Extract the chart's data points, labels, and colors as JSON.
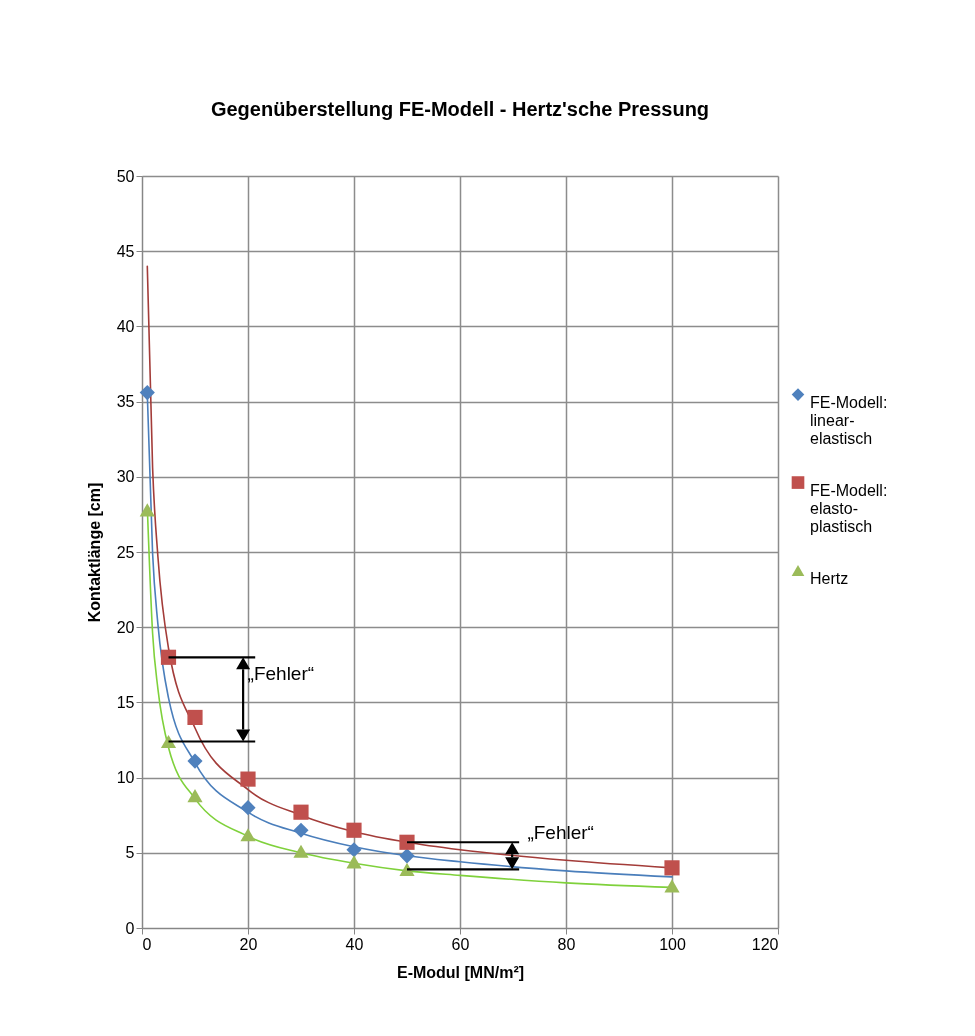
{
  "chart_data": {
    "type": "scatter",
    "title": "Gegenüberstellung FE-Modell - Hertz'sche Pressung",
    "xlabel": "E-Modul [MN/m²]",
    "ylabel": "Kontaktlänge [cm]",
    "xlim": [
      0,
      120
    ],
    "xticks": [
      0,
      20,
      40,
      60,
      80,
      100,
      120
    ],
    "ylim": [
      0,
      50
    ],
    "yticks": [
      0,
      5,
      10,
      15,
      20,
      25,
      30,
      35,
      40,
      45,
      50
    ],
    "grid": true,
    "legend": "right",
    "series": [
      {
        "name": "FE-Modell: linear-elastisch",
        "color": "#4f81bd",
        "marker": "diamond",
        "x": [
          1,
          10,
          20,
          30,
          40,
          50
        ],
        "values": [
          35.6,
          11.1,
          8.0,
          6.5,
          5.2,
          4.8
        ]
      },
      {
        "name": "FE-Modell: elasto-plastisch",
        "color": "#c0504d",
        "marker": "square",
        "x": [
          5,
          10,
          20,
          30,
          40,
          50,
          100
        ],
        "values": [
          18.0,
          14.0,
          9.9,
          7.7,
          6.5,
          5.7,
          4.0
        ]
      },
      {
        "name": "Hertz",
        "color": "#9bbb59",
        "marker": "triangle",
        "x": [
          1,
          5,
          10,
          20,
          30,
          40,
          50,
          100
        ],
        "values": [
          27.8,
          12.4,
          8.8,
          6.2,
          5.1,
          4.4,
          3.9,
          2.8
        ]
      },
      {
        "type": "line",
        "color": "#4a7ebb",
        "x": [
          1,
          2,
          3,
          5,
          10,
          20,
          30,
          40,
          50,
          60,
          80,
          100
        ],
        "values": [
          35.5,
          24.9,
          20.2,
          15.3,
          11.0,
          7.7,
          6.3,
          5.4,
          4.8,
          4.4,
          3.8,
          3.4
        ]
      },
      {
        "type": "line",
        "color": "#a33c39",
        "x": [
          1,
          2,
          3,
          5,
          10,
          20,
          30,
          40,
          50,
          60,
          80,
          100
        ],
        "values": [
          44.0,
          30.6,
          24.7,
          18.6,
          13.3,
          9.2,
          7.5,
          6.4,
          5.7,
          5.2,
          4.5,
          4.0
        ]
      },
      {
        "type": "line",
        "color": "#7fd13b",
        "x": [
          1,
          2,
          3,
          5,
          10,
          20,
          30,
          40,
          50,
          60,
          80,
          100
        ],
        "values": [
          28.0,
          19.6,
          15.9,
          12.0,
          8.6,
          6.1,
          5.0,
          4.3,
          3.8,
          3.5,
          3.0,
          2.7
        ]
      }
    ],
    "annotations": [
      {
        "text": "„Fehler“",
        "x": 5,
        "y": 18.0
      },
      {
        "text": "„Fehler“",
        "x": 50,
        "y": 5.7
      }
    ]
  }
}
